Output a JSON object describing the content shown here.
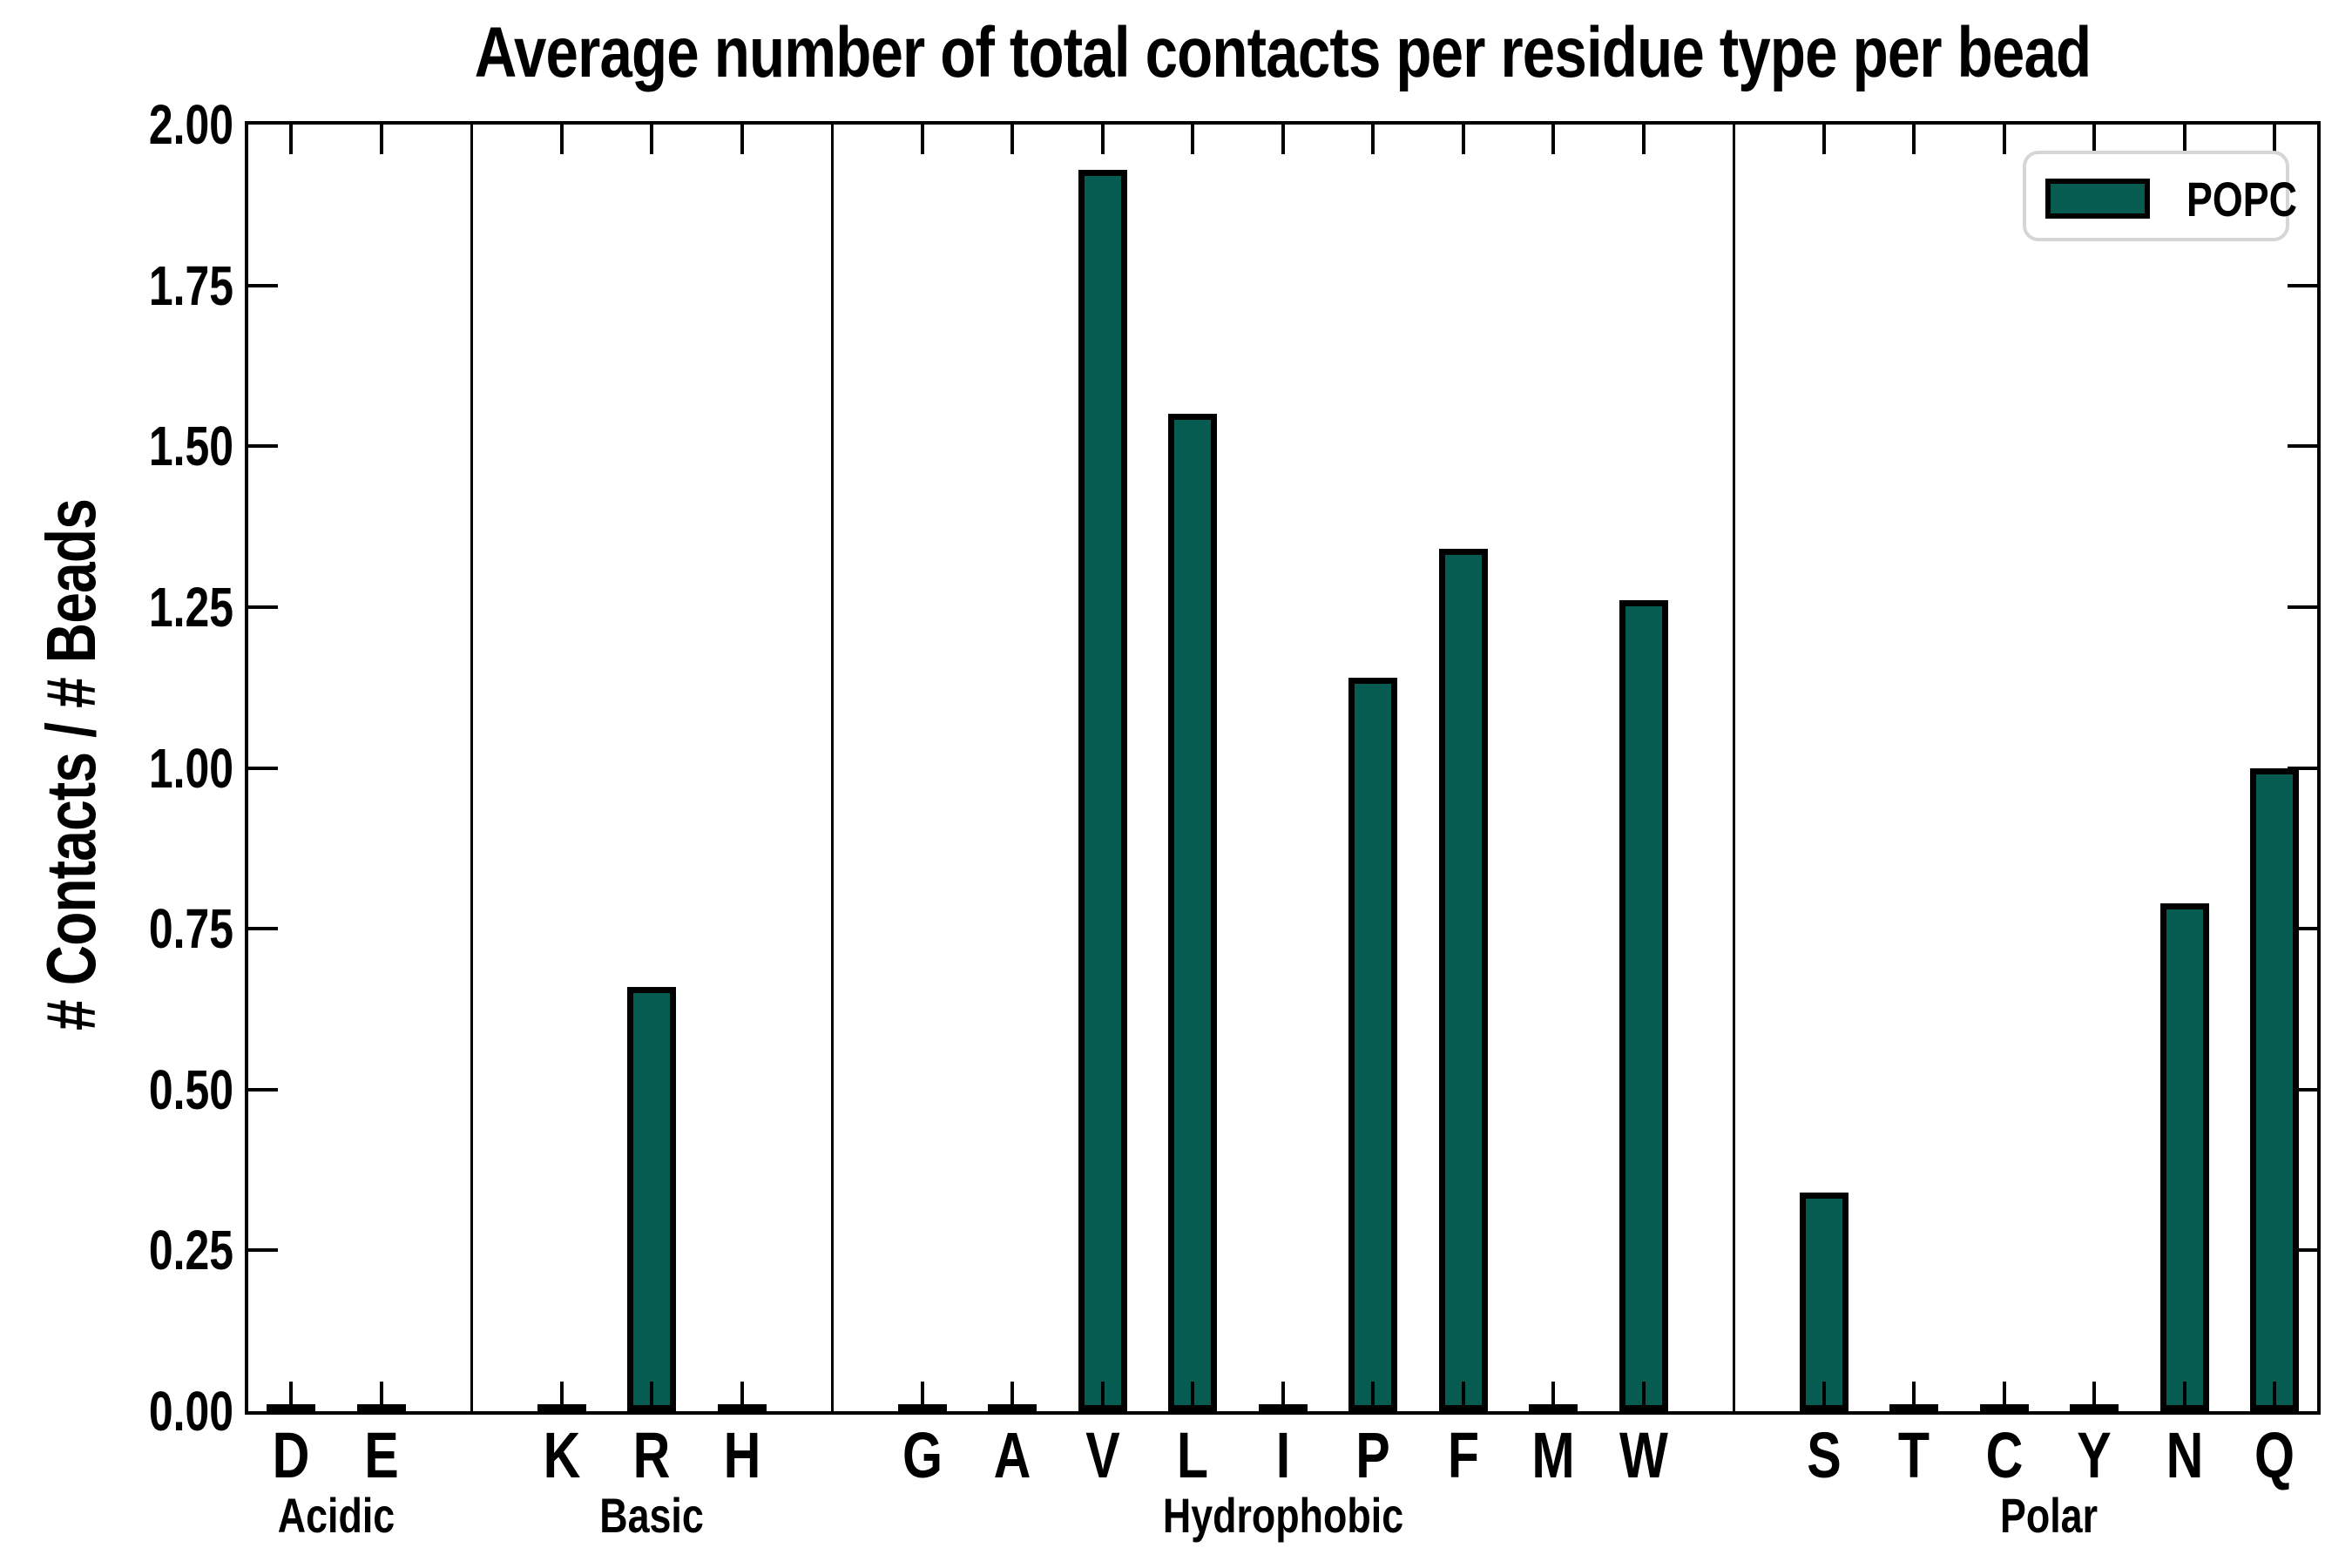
{
  "chart_data": {
    "type": "bar",
    "title": "Average number of total contacts per residue type per bead",
    "xlabel": "",
    "ylabel": "# Contacts / # Beads",
    "ylim": [
      0.0,
      2.0
    ],
    "ytick_step": 0.25,
    "ytick_labels": [
      "0.00",
      "0.25",
      "0.50",
      "0.75",
      "1.00",
      "1.25",
      "1.50",
      "1.75",
      "2.00"
    ],
    "grid": false,
    "legend": {
      "label": "POPC",
      "position": "upper-right"
    },
    "colors": {
      "bar_fill": "#065c51",
      "bar_edge": "#000000",
      "axis": "#000000",
      "legend_border": "#d6d6d6",
      "background": "#ffffff"
    },
    "groups": [
      {
        "label": "Acidic",
        "categories": [
          "D",
          "E"
        ],
        "values": [
          0.0,
          0.0
        ]
      },
      {
        "label": "Basic",
        "categories": [
          "K",
          "R",
          "H"
        ],
        "values": [
          0.0,
          0.66,
          0.0
        ]
      },
      {
        "label": "Hydrophobic",
        "categories": [
          "G",
          "A",
          "V",
          "L",
          "I",
          "P",
          "F",
          "M",
          "W"
        ],
        "values": [
          0.0,
          0.0,
          1.93,
          1.55,
          0.0,
          1.14,
          1.34,
          0.0,
          1.26
        ]
      },
      {
        "label": "Polar",
        "categories": [
          "S",
          "T",
          "C",
          "Y",
          "N",
          "Q"
        ],
        "values": [
          0.34,
          0.0,
          0.0,
          0.0,
          0.79,
          1.0
        ]
      }
    ]
  }
}
